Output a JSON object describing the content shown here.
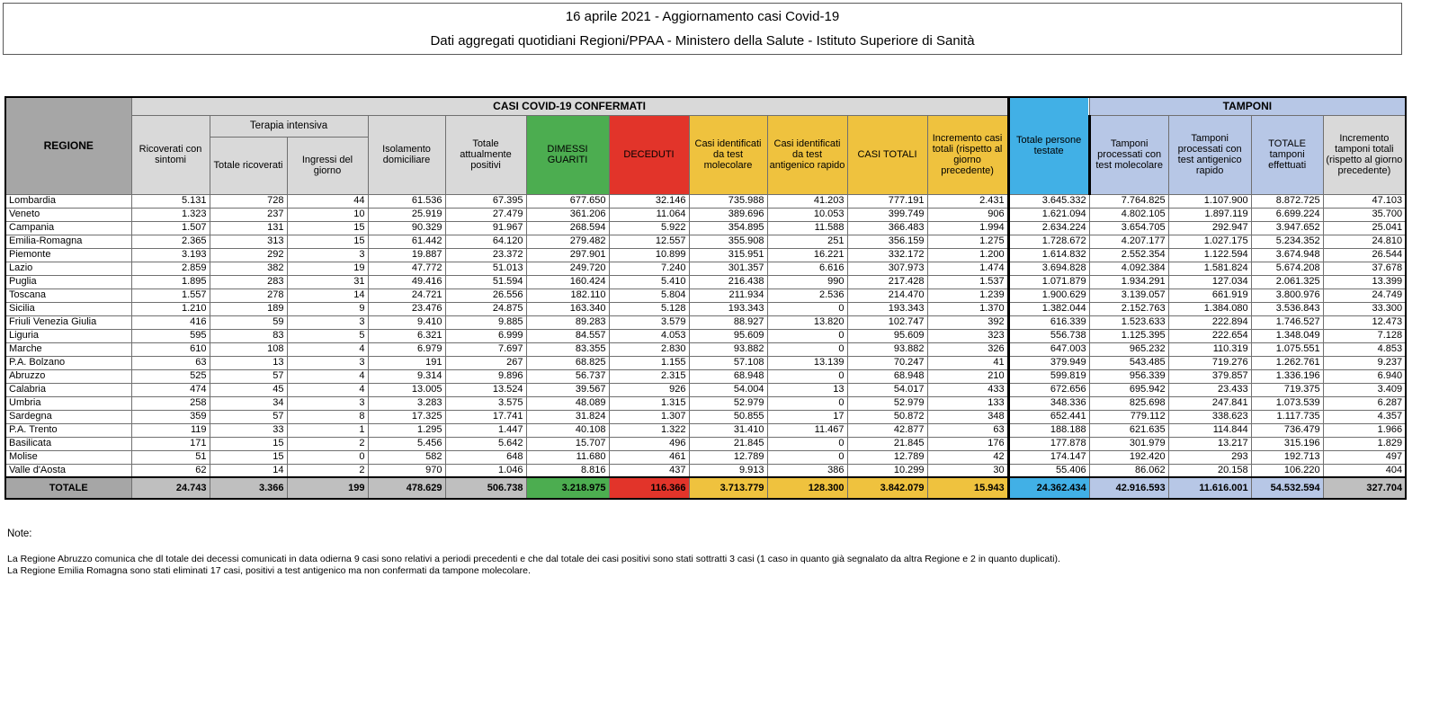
{
  "title": {
    "line1": "16 aprile 2021 - Aggiornamento casi Covid-19",
    "line2": "Dati aggregati quotidiani Regioni/PPAA - Ministero della Salute - Istituto Superiore di Sanità"
  },
  "colors": {
    "green": "#4cad50",
    "red": "#e2342a",
    "yellow": "#efc23e",
    "blue": "#41b0e6",
    "periwinkle": "#b7c7e6",
    "header_gray": "#d9d9d9",
    "dark_gray": "#a6a6a6",
    "total_row_gray": "#bfbfbf"
  },
  "table": {
    "header": {
      "regione": "REGIONE",
      "casi_group": "CASI COVID-19 CONFERMATI",
      "tamponi_group": "TAMPONI",
      "terapia_group": "Terapia intensiva",
      "ricoverati": "Ricoverati con sintomi",
      "ti_totale": "Totale ricoverati",
      "ti_ingressi": "Ingressi del giorno",
      "isolamento": "Isolamento domiciliare",
      "attualmente_positivi": "Totale attualmente positivi",
      "dimessi": "DIMESSI GUARITI",
      "deceduti": "DECEDUTI",
      "casi_molecolare": "Casi identificati da test molecolare",
      "casi_antigenico": "Casi identificati da test antigenico rapido",
      "casi_totali": "CASI TOTALI",
      "incremento_casi": "Incremento casi totali (rispetto al giorno precedente)",
      "persone_testate": "Totale persone testate",
      "tamponi_molecolare": "Tamponi processati con test molecolare",
      "tamponi_antigenico": "Tamponi processati con test antigenico rapido",
      "tamponi_totale": "TOTALE tamponi effettuati",
      "incremento_tamponi": "Incremento tamponi totali (rispetto al giorno precedente)"
    },
    "rows": [
      {
        "region": "Lombardia",
        "values": [
          "5.131",
          "728",
          "44",
          "61.536",
          "67.395",
          "677.650",
          "32.146",
          "735.988",
          "41.203",
          "777.191",
          "2.431",
          "3.645.332",
          "7.764.825",
          "1.107.900",
          "8.872.725",
          "47.103"
        ]
      },
      {
        "region": "Veneto",
        "values": [
          "1.323",
          "237",
          "10",
          "25.919",
          "27.479",
          "361.206",
          "11.064",
          "389.696",
          "10.053",
          "399.749",
          "906",
          "1.621.094",
          "4.802.105",
          "1.897.119",
          "6.699.224",
          "35.700"
        ]
      },
      {
        "region": "Campania",
        "values": [
          "1.507",
          "131",
          "15",
          "90.329",
          "91.967",
          "268.594",
          "5.922",
          "354.895",
          "11.588",
          "366.483",
          "1.994",
          "2.634.224",
          "3.654.705",
          "292.947",
          "3.947.652",
          "25.041"
        ]
      },
      {
        "region": "Emilia-Romagna",
        "values": [
          "2.365",
          "313",
          "15",
          "61.442",
          "64.120",
          "279.482",
          "12.557",
          "355.908",
          "251",
          "356.159",
          "1.275",
          "1.728.672",
          "4.207.177",
          "1.027.175",
          "5.234.352",
          "24.810"
        ]
      },
      {
        "region": "Piemonte",
        "values": [
          "3.193",
          "292",
          "3",
          "19.887",
          "23.372",
          "297.901",
          "10.899",
          "315.951",
          "16.221",
          "332.172",
          "1.200",
          "1.614.832",
          "2.552.354",
          "1.122.594",
          "3.674.948",
          "26.544"
        ]
      },
      {
        "region": "Lazio",
        "values": [
          "2.859",
          "382",
          "19",
          "47.772",
          "51.013",
          "249.720",
          "7.240",
          "301.357",
          "6.616",
          "307.973",
          "1.474",
          "3.694.828",
          "4.092.384",
          "1.581.824",
          "5.674.208",
          "37.678"
        ]
      },
      {
        "region": "Puglia",
        "values": [
          "1.895",
          "283",
          "31",
          "49.416",
          "51.594",
          "160.424",
          "5.410",
          "216.438",
          "990",
          "217.428",
          "1.537",
          "1.071.879",
          "1.934.291",
          "127.034",
          "2.061.325",
          "13.399"
        ]
      },
      {
        "region": "Toscana",
        "values": [
          "1.557",
          "278",
          "14",
          "24.721",
          "26.556",
          "182.110",
          "5.804",
          "211.934",
          "2.536",
          "214.470",
          "1.239",
          "1.900.629",
          "3.139.057",
          "661.919",
          "3.800.976",
          "24.749"
        ]
      },
      {
        "region": "Sicilia",
        "values": [
          "1.210",
          "189",
          "9",
          "23.476",
          "24.875",
          "163.340",
          "5.128",
          "193.343",
          "0",
          "193.343",
          "1.370",
          "1.382.044",
          "2.152.763",
          "1.384.080",
          "3.536.843",
          "33.300"
        ]
      },
      {
        "region": "Friuli Venezia Giulia",
        "values": [
          "416",
          "59",
          "3",
          "9.410",
          "9.885",
          "89.283",
          "3.579",
          "88.927",
          "13.820",
          "102.747",
          "392",
          "616.339",
          "1.523.633",
          "222.894",
          "1.746.527",
          "12.473"
        ]
      },
      {
        "region": "Liguria",
        "values": [
          "595",
          "83",
          "5",
          "6.321",
          "6.999",
          "84.557",
          "4.053",
          "95.609",
          "0",
          "95.609",
          "323",
          "556.738",
          "1.125.395",
          "222.654",
          "1.348.049",
          "7.128"
        ]
      },
      {
        "region": "Marche",
        "values": [
          "610",
          "108",
          "4",
          "6.979",
          "7.697",
          "83.355",
          "2.830",
          "93.882",
          "0",
          "93.882",
          "326",
          "647.003",
          "965.232",
          "110.319",
          "1.075.551",
          "4.853"
        ]
      },
      {
        "region": "P.A. Bolzano",
        "values": [
          "63",
          "13",
          "3",
          "191",
          "267",
          "68.825",
          "1.155",
          "57.108",
          "13.139",
          "70.247",
          "41",
          "379.949",
          "543.485",
          "719.276",
          "1.262.761",
          "9.237"
        ]
      },
      {
        "region": "Abruzzo",
        "values": [
          "525",
          "57",
          "4",
          "9.314",
          "9.896",
          "56.737",
          "2.315",
          "68.948",
          "0",
          "68.948",
          "210",
          "599.819",
          "956.339",
          "379.857",
          "1.336.196",
          "6.940"
        ]
      },
      {
        "region": "Calabria",
        "values": [
          "474",
          "45",
          "4",
          "13.005",
          "13.524",
          "39.567",
          "926",
          "54.004",
          "13",
          "54.017",
          "433",
          "672.656",
          "695.942",
          "23.433",
          "719.375",
          "3.409"
        ]
      },
      {
        "region": "Umbria",
        "values": [
          "258",
          "34",
          "3",
          "3.283",
          "3.575",
          "48.089",
          "1.315",
          "52.979",
          "0",
          "52.979",
          "133",
          "348.336",
          "825.698",
          "247.841",
          "1.073.539",
          "6.287"
        ]
      },
      {
        "region": "Sardegna",
        "values": [
          "359",
          "57",
          "8",
          "17.325",
          "17.741",
          "31.824",
          "1.307",
          "50.855",
          "17",
          "50.872",
          "348",
          "652.441",
          "779.112",
          "338.623",
          "1.117.735",
          "4.357"
        ]
      },
      {
        "region": "P.A. Trento",
        "values": [
          "119",
          "33",
          "1",
          "1.295",
          "1.447",
          "40.108",
          "1.322",
          "31.410",
          "11.467",
          "42.877",
          "63",
          "188.188",
          "621.635",
          "114.844",
          "736.479",
          "1.966"
        ]
      },
      {
        "region": "Basilicata",
        "values": [
          "171",
          "15",
          "2",
          "5.456",
          "5.642",
          "15.707",
          "496",
          "21.845",
          "0",
          "21.845",
          "176",
          "177.878",
          "301.979",
          "13.217",
          "315.196",
          "1.829"
        ]
      },
      {
        "region": "Molise",
        "values": [
          "51",
          "15",
          "0",
          "582",
          "648",
          "11.680",
          "461",
          "12.789",
          "0",
          "12.789",
          "42",
          "174.147",
          "192.420",
          "293",
          "192.713",
          "497"
        ]
      },
      {
        "region": "Valle d'Aosta",
        "values": [
          "62",
          "14",
          "2",
          "970",
          "1.046",
          "8.816",
          "437",
          "9.913",
          "386",
          "10.299",
          "30",
          "55.406",
          "86.062",
          "20.158",
          "106.220",
          "404"
        ]
      }
    ],
    "total_row": {
      "label": "TOTALE",
      "values": [
        "24.743",
        "3.366",
        "199",
        "478.629",
        "506.738",
        "3.218.975",
        "116.366",
        "3.713.779",
        "128.300",
        "3.842.079",
        "15.943",
        "24.362.434",
        "42.916.593",
        "11.616.001",
        "54.532.594",
        "327.704"
      ]
    }
  },
  "notes": {
    "title": "Note:",
    "line1": "La Regione Abruzzo comunica che dl totale dei decessi comunicati in data odierna 9 casi sono relativi a periodi precedenti e che dal totale dei casi positivi sono stati sottratti 3 casi (1 caso in quanto già segnalato da altra Regione e 2 in quanto duplicati).",
    "line2": "La Regione Emilia Romagna sono stati eliminati 17 casi, positivi a test antigenico ma non confermati da tampone molecolare."
  }
}
